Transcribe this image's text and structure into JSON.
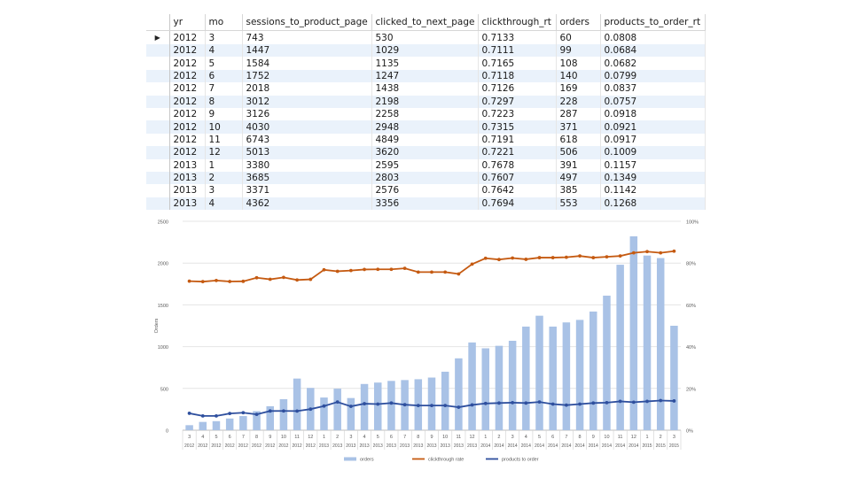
{
  "table": {
    "columns": [
      "yr",
      "mo",
      "sessions_to_product_page",
      "clicked_to_next_page",
      "clickthrough_rt",
      "orders",
      "products_to_order_rt"
    ],
    "rows": [
      [
        "2012",
        "3",
        "743",
        "530",
        "0.7133",
        "60",
        "0.0808"
      ],
      [
        "2012",
        "4",
        "1447",
        "1029",
        "0.7111",
        "99",
        "0.0684"
      ],
      [
        "2012",
        "5",
        "1584",
        "1135",
        "0.7165",
        "108",
        "0.0682"
      ],
      [
        "2012",
        "6",
        "1752",
        "1247",
        "0.7118",
        "140",
        "0.0799"
      ],
      [
        "2012",
        "7",
        "2018",
        "1438",
        "0.7126",
        "169",
        "0.0837"
      ],
      [
        "2012",
        "8",
        "3012",
        "2198",
        "0.7297",
        "228",
        "0.0757"
      ],
      [
        "2012",
        "9",
        "3126",
        "2258",
        "0.7223",
        "287",
        "0.0918"
      ],
      [
        "2012",
        "10",
        "4030",
        "2948",
        "0.7315",
        "371",
        "0.0921"
      ],
      [
        "2012",
        "11",
        "6743",
        "4849",
        "0.7191",
        "618",
        "0.0917"
      ],
      [
        "2012",
        "12",
        "5013",
        "3620",
        "0.7221",
        "506",
        "0.1009"
      ],
      [
        "2013",
        "1",
        "3380",
        "2595",
        "0.7678",
        "391",
        "0.1157"
      ],
      [
        "2013",
        "2",
        "3685",
        "2803",
        "0.7607",
        "497",
        "0.1349"
      ],
      [
        "2013",
        "3",
        "3371",
        "2576",
        "0.7642",
        "385",
        "0.1142"
      ],
      [
        "2013",
        "4",
        "4362",
        "3356",
        "0.7694",
        "553",
        "0.1268"
      ]
    ]
  },
  "chart_data": {
    "type": "bar",
    "ylabel": "Orders",
    "ylim": [
      0,
      2500
    ],
    "yticks": [
      "0",
      "500",
      "1000",
      "1500",
      "2000",
      "2500"
    ],
    "y2lim": [
      0,
      1
    ],
    "y2ticks": [
      "0%",
      "20%",
      "40%",
      "60%",
      "80%",
      "100%"
    ],
    "grid": true,
    "legend_position": "bottom",
    "categories": [
      {
        "mo": "3",
        "yr": "2012"
      },
      {
        "mo": "4",
        "yr": "2012"
      },
      {
        "mo": "5",
        "yr": "2012"
      },
      {
        "mo": "6",
        "yr": "2012"
      },
      {
        "mo": "7",
        "yr": "2012"
      },
      {
        "mo": "8",
        "yr": "2012"
      },
      {
        "mo": "9",
        "yr": "2012"
      },
      {
        "mo": "10",
        "yr": "2012"
      },
      {
        "mo": "11",
        "yr": "2012"
      },
      {
        "mo": "12",
        "yr": "2012"
      },
      {
        "mo": "1",
        "yr": "2013"
      },
      {
        "mo": "2",
        "yr": "2013"
      },
      {
        "mo": "3",
        "yr": "2013"
      },
      {
        "mo": "4",
        "yr": "2013"
      },
      {
        "mo": "5",
        "yr": "2013"
      },
      {
        "mo": "6",
        "yr": "2013"
      },
      {
        "mo": "7",
        "yr": "2013"
      },
      {
        "mo": "8",
        "yr": "2013"
      },
      {
        "mo": "9",
        "yr": "2013"
      },
      {
        "mo": "10",
        "yr": "2013"
      },
      {
        "mo": "11",
        "yr": "2013"
      },
      {
        "mo": "12",
        "yr": "2013"
      },
      {
        "mo": "1",
        "yr": "2014"
      },
      {
        "mo": "2",
        "yr": "2014"
      },
      {
        "mo": "3",
        "yr": "2014"
      },
      {
        "mo": "4",
        "yr": "2014"
      },
      {
        "mo": "5",
        "yr": "2014"
      },
      {
        "mo": "6",
        "yr": "2014"
      },
      {
        "mo": "7",
        "yr": "2014"
      },
      {
        "mo": "8",
        "yr": "2014"
      },
      {
        "mo": "9",
        "yr": "2014"
      },
      {
        "mo": "10",
        "yr": "2014"
      },
      {
        "mo": "11",
        "yr": "2014"
      },
      {
        "mo": "12",
        "yr": "2014"
      },
      {
        "mo": "1",
        "yr": "2015"
      },
      {
        "mo": "2",
        "yr": "2015"
      },
      {
        "mo": "3",
        "yr": "2015"
      }
    ],
    "series": [
      {
        "name": "orders",
        "axis": "left",
        "kind": "bar",
        "color": "#a9c2e6",
        "values": [
          60,
          99,
          108,
          140,
          169,
          228,
          287,
          371,
          618,
          506,
          391,
          497,
          385,
          553,
          570,
          590,
          600,
          610,
          630,
          700,
          860,
          1050,
          980,
          1010,
          1070,
          1240,
          1370,
          1240,
          1290,
          1320,
          1420,
          1610,
          1980,
          2320,
          2090,
          2060,
          1250
        ]
      },
      {
        "name": "clickthrough rate",
        "axis": "right",
        "kind": "line",
        "color": "#c55a11",
        "values": [
          0.7133,
          0.7111,
          0.7165,
          0.7118,
          0.7126,
          0.7297,
          0.7223,
          0.7315,
          0.7191,
          0.7221,
          0.7678,
          0.7607,
          0.7642,
          0.7694,
          0.77,
          0.77,
          0.775,
          0.757,
          0.757,
          0.757,
          0.748,
          0.795,
          0.823,
          0.817,
          0.824,
          0.818,
          0.826,
          0.826,
          0.828,
          0.834,
          0.826,
          0.83,
          0.834,
          0.849,
          0.855,
          0.849,
          0.857
        ]
      },
      {
        "name": "products to order",
        "axis": "right",
        "kind": "line",
        "color": "#2e4f9e",
        "values": [
          0.0808,
          0.0684,
          0.0682,
          0.0799,
          0.0837,
          0.0757,
          0.0918,
          0.0921,
          0.0917,
          0.1009,
          0.1157,
          0.1349,
          0.1142,
          0.1268,
          0.125,
          0.13,
          0.122,
          0.118,
          0.118,
          0.118,
          0.11,
          0.121,
          0.128,
          0.13,
          0.132,
          0.13,
          0.135,
          0.125,
          0.12,
          0.125,
          0.13,
          0.132,
          0.138,
          0.134,
          0.138,
          0.142,
          0.14
        ]
      }
    ]
  }
}
